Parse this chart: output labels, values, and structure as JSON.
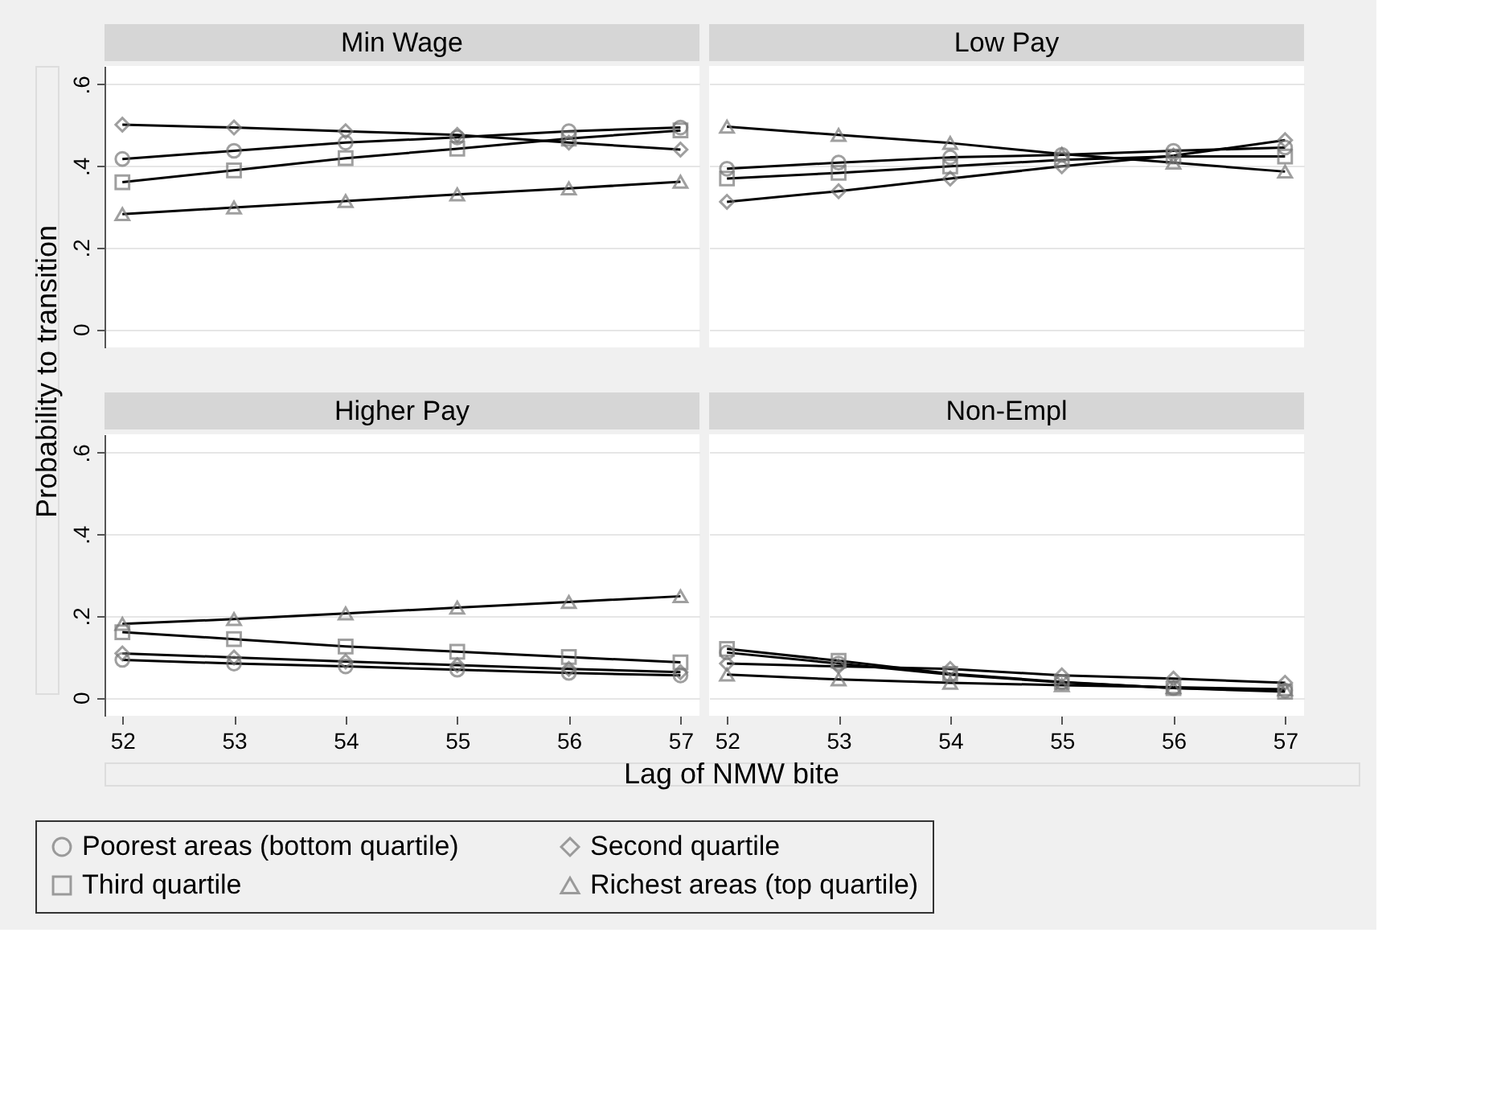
{
  "chart_data": [
    {
      "type": "line",
      "title": "Min Wage",
      "ylabel": "Probability to transition",
      "xlabel": "Lag of NMW bite",
      "x": [
        52,
        53,
        54,
        55,
        56,
        57
      ],
      "xlim": [
        51.84,
        57.17
      ],
      "ylim": [
        -0.045,
        0.645
      ],
      "xticks": [
        52,
        53,
        54,
        55,
        56,
        57
      ],
      "yticks": [
        0,
        {
          "value": 0.2,
          "label": ".2"
        },
        {
          "value": 0.4,
          "label": ".4"
        },
        {
          "value": 0.6,
          "label": ".6"
        }
      ],
      "grid": "y",
      "tick_labels": "y",
      "legend": "bottom",
      "series": [
        {
          "name": "Poorest areas (bottom quartile)",
          "color": "#000000",
          "marker": "circle",
          "values": [
            0.417,
            0.437,
            0.457,
            0.47,
            0.485,
            0.494
          ]
        },
        {
          "name": "Second quartile",
          "color": "#000000",
          "marker": "diamond",
          "values": [
            0.501,
            0.494,
            0.485,
            0.476,
            0.457,
            0.44
          ]
        },
        {
          "name": "Third quartile",
          "color": "#000000",
          "marker": "square",
          "values": [
            0.36,
            0.389,
            0.419,
            0.442,
            0.467,
            0.487
          ]
        },
        {
          "name": "Richest areas (top quartile)",
          "color": "#000000",
          "marker": "triangle",
          "values": [
            0.282,
            0.298,
            0.314,
            0.33,
            0.345,
            0.361
          ]
        }
      ]
    },
    {
      "type": "line",
      "title": "Low Pay",
      "x": [
        52,
        53,
        54,
        55,
        56,
        57
      ],
      "xlim": [
        51.84,
        57.17
      ],
      "ylim": [
        -0.045,
        0.645
      ],
      "xticks": [
        52,
        53,
        54,
        55,
        56,
        57
      ],
      "yticks": [
        0,
        {
          "value": 0.2,
          "label": ".2"
        },
        {
          "value": 0.4,
          "label": ".4"
        },
        {
          "value": 0.6,
          "label": ".6"
        }
      ],
      "grid": "y",
      "tick_labels": false,
      "legend": "bottom",
      "series": [
        {
          "name": "Poorest areas (bottom quartile)",
          "color": "#000000",
          "marker": "circle",
          "values": [
            0.393,
            0.408,
            0.421,
            0.427,
            0.437,
            0.445
          ]
        },
        {
          "name": "Second quartile",
          "color": "#000000",
          "marker": "diamond",
          "values": [
            0.312,
            0.338,
            0.369,
            0.399,
            0.425,
            0.463
          ]
        },
        {
          "name": "Third quartile",
          "color": "#000000",
          "marker": "square",
          "values": [
            0.369,
            0.383,
            0.399,
            0.415,
            0.423,
            0.423
          ]
        },
        {
          "name": "Richest areas (top quartile)",
          "color": "#000000",
          "marker": "triangle",
          "values": [
            0.496,
            0.476,
            0.456,
            0.429,
            0.408,
            0.386
          ]
        }
      ]
    },
    {
      "type": "line",
      "title": "Higher Pay",
      "x": [
        52,
        53,
        54,
        55,
        56,
        57
      ],
      "xlim": [
        51.84,
        57.17
      ],
      "ylim": [
        -0.045,
        0.645
      ],
      "xticks": [
        52,
        53,
        54,
        55,
        56,
        57
      ],
      "yticks": [
        0,
        {
          "value": 0.2,
          "label": ".2"
        },
        {
          "value": 0.4,
          "label": ".4"
        },
        {
          "value": 0.6,
          "label": ".6"
        }
      ],
      "grid": "y",
      "legend": "bottom",
      "series": [
        {
          "name": "Poorest areas (bottom quartile)",
          "color": "#000000",
          "marker": "circle",
          "values": [
            0.092,
            0.083,
            0.076,
            0.068,
            0.06,
            0.054
          ]
        },
        {
          "name": "Second quartile",
          "color": "#000000",
          "marker": "diamond",
          "values": [
            0.108,
            0.098,
            0.088,
            0.079,
            0.07,
            0.062
          ]
        },
        {
          "name": "Third quartile",
          "color": "#000000",
          "marker": "square",
          "values": [
            0.16,
            0.143,
            0.125,
            0.112,
            0.099,
            0.086
          ]
        },
        {
          "name": "Richest areas (top quartile)",
          "color": "#000000",
          "marker": "triangle",
          "values": [
            0.18,
            0.192,
            0.206,
            0.22,
            0.234,
            0.248
          ]
        }
      ]
    },
    {
      "type": "line",
      "title": "Non-Empl",
      "x": [
        52,
        53,
        54,
        55,
        56,
        57
      ],
      "xlim": [
        51.84,
        57.17
      ],
      "ylim": [
        -0.045,
        0.645
      ],
      "xticks": [
        52,
        53,
        54,
        55,
        56,
        57
      ],
      "yticks": [
        0,
        {
          "value": 0.2,
          "label": ".2"
        },
        {
          "value": 0.4,
          "label": ".4"
        },
        {
          "value": 0.6,
          "label": ".6"
        }
      ],
      "grid": "y",
      "tick_labels": "x",
      "legend": "bottom",
      "series": [
        {
          "name": "Poorest areas (bottom quartile)",
          "color": "#000000",
          "marker": "circle",
          "values": [
            0.11,
            0.083,
            0.056,
            0.037,
            0.023,
            0.017
          ]
        },
        {
          "name": "Second quartile",
          "color": "#000000",
          "marker": "diamond",
          "values": [
            0.083,
            0.076,
            0.07,
            0.054,
            0.046,
            0.036
          ]
        },
        {
          "name": "Third quartile",
          "color": "#000000",
          "marker": "square",
          "values": [
            0.119,
            0.09,
            0.058,
            0.038,
            0.023,
            0.014
          ]
        },
        {
          "name": "Richest areas (top quartile)",
          "color": "#000000",
          "marker": "triangle",
          "values": [
            0.056,
            0.044,
            0.036,
            0.03,
            0.025,
            0.02
          ]
        }
      ]
    }
  ]
}
